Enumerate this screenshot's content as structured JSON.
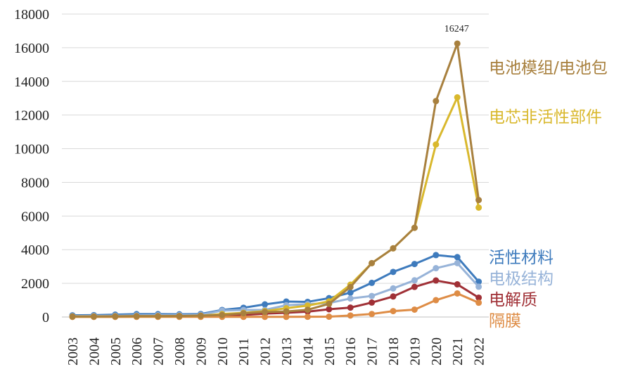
{
  "chart_data": {
    "type": "line",
    "title": "",
    "xlabel": "",
    "ylabel": "",
    "ylim": [
      0,
      18000
    ],
    "yticks": [
      0,
      2000,
      4000,
      6000,
      8000,
      10000,
      12000,
      14000,
      16000,
      18000
    ],
    "grid": "horizontal",
    "x": [
      "2003",
      "2004",
      "2005",
      "2006",
      "2007",
      "2008",
      "2009",
      "2010",
      "2011",
      "2012",
      "2013",
      "2014",
      "2015",
      "2016",
      "2017",
      "2018",
      "2019",
      "2020",
      "2021",
      "2022"
    ],
    "series": [
      {
        "name": "活性材料",
        "color": "#3e7bbd",
        "values": [
          100,
          110,
          140,
          170,
          170,
          160,
          180,
          420,
          550,
          750,
          920,
          900,
          1120,
          1450,
          2030,
          2680,
          3150,
          3680,
          3560,
          2100
        ]
      },
      {
        "name": "电极结构",
        "color": "#97b3d8",
        "values": [
          60,
          70,
          80,
          100,
          110,
          110,
          130,
          380,
          420,
          420,
          700,
          760,
          830,
          1100,
          1250,
          1700,
          2180,
          2900,
          3200,
          1800
        ]
      },
      {
        "name": "电解质",
        "color": "#a03036",
        "values": [
          20,
          20,
          30,
          40,
          40,
          50,
          60,
          100,
          120,
          200,
          250,
          320,
          460,
          560,
          860,
          1220,
          1790,
          2170,
          1940,
          1150
        ]
      },
      {
        "name": "隔膜",
        "color": "#de8c45",
        "values": [
          5,
          5,
          5,
          10,
          10,
          10,
          10,
          10,
          10,
          10,
          10,
          15,
          20,
          90,
          180,
          350,
          440,
          1000,
          1400,
          850
        ]
      },
      {
        "name": "电芯非活性部件",
        "color": "#d9b82d",
        "values": [
          30,
          30,
          40,
          50,
          50,
          60,
          80,
          180,
          250,
          350,
          520,
          680,
          930,
          1920,
          3200,
          4080,
          5300,
          10250,
          13050,
          6500
        ]
      },
      {
        "name": "电池模组/电池包",
        "color": "#a8803e",
        "values": [
          30,
          30,
          40,
          50,
          50,
          60,
          80,
          120,
          220,
          300,
          330,
          430,
          780,
          1780,
          3200,
          4080,
          5300,
          12830,
          16247,
          6950
        ]
      }
    ],
    "annotations": [
      {
        "series": "电池模组/电池包",
        "x": "2021",
        "text": "16247"
      }
    ]
  }
}
